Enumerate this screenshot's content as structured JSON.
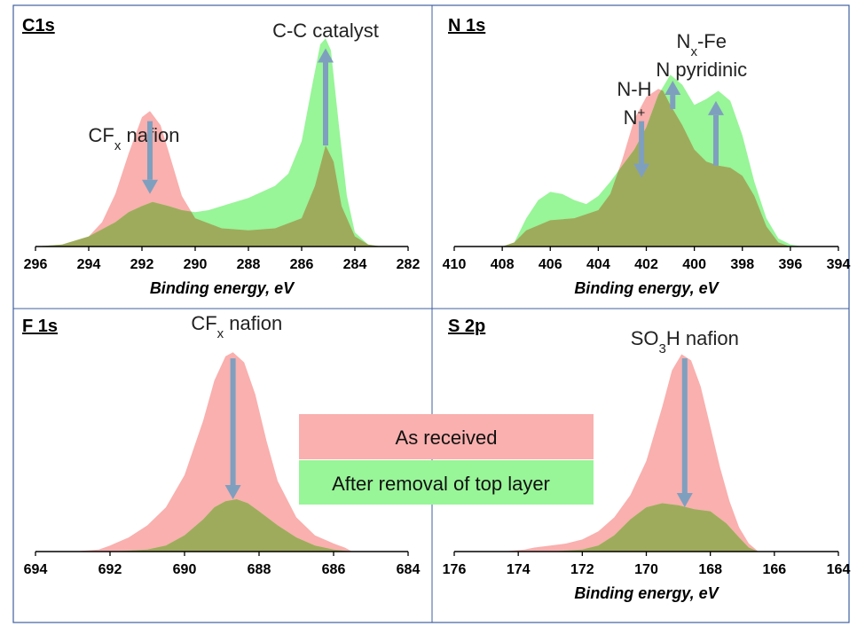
{
  "colors": {
    "as_received": "#f9b0ae",
    "after_removal": "#98f598",
    "overlap": "#9fab5c",
    "arrow": "#7f9fbf",
    "frame": "#3f5f9f"
  },
  "legend": {
    "as_received": "As received",
    "after_removal": "After removal of top layer"
  },
  "chart_data": [
    {
      "type": "area",
      "panel_title": "C1s",
      "xlabel": "Binding energy, eV",
      "xlim": [
        296,
        282
      ],
      "x_ticks": [
        296,
        294,
        292,
        290,
        288,
        286,
        284,
        282
      ],
      "annotations": [
        {
          "text": "CF",
          "sub": "x",
          "tail": " nafion",
          "x": 292.3
        },
        {
          "text": "C-C catalyst",
          "x": 285.1
        }
      ],
      "arrows": [
        {
          "x": 291.7,
          "from": 0.62,
          "to": 0.26
        },
        {
          "x": 285.1,
          "from": 0.5,
          "to": 0.98
        }
      ],
      "series": [
        {
          "name": "As received",
          "x": [
            296,
            295,
            294,
            293.5,
            293,
            292.5,
            292,
            291.7,
            291.3,
            291,
            290.5,
            290,
            289,
            288,
            287,
            286,
            285.5,
            285.1,
            284.8,
            284.5,
            284,
            283.5,
            283,
            282.5,
            282
          ],
          "y": [
            0,
            0.01,
            0.05,
            0.12,
            0.26,
            0.46,
            0.64,
            0.67,
            0.6,
            0.47,
            0.25,
            0.14,
            0.09,
            0.08,
            0.09,
            0.14,
            0.3,
            0.5,
            0.42,
            0.2,
            0.05,
            0.01,
            0,
            0,
            0
          ]
        },
        {
          "name": "After removal of top layer",
          "x": [
            296,
            295,
            294,
            293,
            292.5,
            292,
            291.6,
            291,
            290.5,
            290,
            289.5,
            289,
            288,
            287,
            286.5,
            286,
            285.6,
            285.3,
            285.1,
            284.9,
            284.6,
            284.3,
            284,
            283.5,
            283,
            282.5,
            282
          ],
          "y": [
            0,
            0.01,
            0.05,
            0.12,
            0.17,
            0.2,
            0.22,
            0.2,
            0.18,
            0.17,
            0.18,
            0.2,
            0.24,
            0.3,
            0.36,
            0.52,
            0.8,
            1.0,
            1.03,
            0.97,
            0.6,
            0.25,
            0.07,
            0.01,
            0,
            0,
            0
          ]
        }
      ]
    },
    {
      "type": "area",
      "panel_title": "N 1s",
      "xlabel": "Binding energy, eV",
      "xlim": [
        410,
        394
      ],
      "x_ticks": [
        410,
        408,
        406,
        404,
        402,
        400,
        398,
        396,
        394
      ],
      "annotations": [
        {
          "text": "N-H",
          "x": 402.5
        },
        {
          "text": "N",
          "sup": "+",
          "x": 402.5
        },
        {
          "text": "N",
          "sub": "x",
          "tail": "-Fe",
          "x": 399.7
        },
        {
          "text": "N pyridinic",
          "x": 399.7
        }
      ],
      "arrows": [
        {
          "x": 402.2,
          "from": 0.62,
          "to": 0.34
        },
        {
          "x": 400.9,
          "from": 0.68,
          "to": 0.82
        },
        {
          "x": 399.1,
          "from": 0.4,
          "to": 0.72
        }
      ],
      "series": [
        {
          "name": "As received",
          "x": [
            410,
            409,
            408,
            407.5,
            407,
            406,
            405,
            404,
            403.5,
            403,
            402.5,
            402,
            401.5,
            401.3,
            401,
            400.5,
            400,
            399.5,
            399,
            398.5,
            398,
            397.5,
            397,
            396.5,
            396,
            395,
            394
          ],
          "y": [
            0,
            0,
            0,
            0.02,
            0.08,
            0.13,
            0.14,
            0.18,
            0.26,
            0.43,
            0.63,
            0.74,
            0.78,
            0.77,
            0.7,
            0.6,
            0.48,
            0.42,
            0.4,
            0.39,
            0.35,
            0.25,
            0.1,
            0.02,
            0,
            0,
            0
          ]
        },
        {
          "name": "After removal of top layer",
          "x": [
            410,
            409,
            408,
            407.5,
            407,
            406.5,
            406,
            405.5,
            405,
            404.5,
            404,
            403.5,
            403,
            402.5,
            402,
            401.5,
            401,
            400.5,
            400,
            399.5,
            399,
            398.5,
            398,
            397.5,
            397,
            396.5,
            396,
            395.5,
            395,
            394
          ],
          "y": [
            0,
            0,
            0,
            0.02,
            0.14,
            0.23,
            0.27,
            0.26,
            0.23,
            0.21,
            0.25,
            0.32,
            0.4,
            0.48,
            0.59,
            0.75,
            0.85,
            0.8,
            0.7,
            0.73,
            0.77,
            0.72,
            0.55,
            0.32,
            0.14,
            0.04,
            0.01,
            0,
            0,
            0
          ]
        }
      ]
    },
    {
      "type": "area",
      "panel_title": "F 1s",
      "xlabel": "",
      "xlim": [
        694,
        684
      ],
      "x_ticks": [
        694,
        692,
        690,
        688,
        686,
        684
      ],
      "annotations": [
        {
          "text": "CF",
          "sub": "x",
          "tail": " nafion",
          "x": 688.6
        }
      ],
      "arrows": [
        {
          "x": 688.7,
          "from": 0.96,
          "to": 0.26
        }
      ],
      "series": [
        {
          "name": "As received",
          "x": [
            694,
            693,
            692.3,
            692,
            691.5,
            691,
            690.5,
            690,
            689.5,
            689.2,
            688.9,
            688.7,
            688.4,
            688.1,
            687.8,
            687.5,
            687,
            686.5,
            686,
            685.7,
            685.5,
            685,
            684
          ],
          "y": [
            0,
            0,
            0.01,
            0.03,
            0.07,
            0.13,
            0.22,
            0.38,
            0.65,
            0.85,
            0.97,
            0.99,
            0.94,
            0.78,
            0.55,
            0.35,
            0.17,
            0.08,
            0.04,
            0.02,
            0,
            0,
            0
          ]
        },
        {
          "name": "After removal of top layer",
          "x": [
            694,
            692,
            691,
            690.5,
            690,
            689.5,
            689.2,
            688.9,
            688.6,
            688.3,
            688,
            687.5,
            687,
            686.5,
            686,
            685.5,
            684
          ],
          "y": [
            0,
            0,
            0.01,
            0.03,
            0.08,
            0.16,
            0.22,
            0.25,
            0.26,
            0.24,
            0.2,
            0.13,
            0.07,
            0.03,
            0.01,
            0,
            0
          ]
        }
      ]
    },
    {
      "type": "area",
      "panel_title": "S 2p",
      "xlabel": "Binding energy, eV",
      "xlim": [
        176,
        164
      ],
      "x_ticks": [
        176,
        174,
        172,
        170,
        168,
        166,
        164
      ],
      "annotations": [
        {
          "text": "SO",
          "sub": "3",
          "tail": "H nafion",
          "x": 168.8
        }
      ],
      "arrows": [
        {
          "x": 168.8,
          "from": 0.96,
          "to": 0.22
        }
      ],
      "series": [
        {
          "name": "As received",
          "x": [
            176,
            174.5,
            173.8,
            173.5,
            173,
            172.5,
            172,
            171.5,
            171,
            170.5,
            170,
            169.5,
            169.2,
            168.9,
            168.6,
            168.3,
            168,
            167.7,
            167.4,
            167.1,
            166.8,
            166.5,
            166,
            164
          ],
          "y": [
            0,
            0,
            0.01,
            0.02,
            0.03,
            0.04,
            0.06,
            0.1,
            0.17,
            0.28,
            0.45,
            0.72,
            0.9,
            0.98,
            0.95,
            0.82,
            0.62,
            0.42,
            0.25,
            0.12,
            0.04,
            0,
            0,
            0
          ]
        },
        {
          "name": "After removal of top layer",
          "x": [
            176,
            173,
            172,
            171.5,
            171,
            170.5,
            170,
            169.5,
            169,
            168.5,
            168,
            167.5,
            167.1,
            166.8,
            166.5,
            164
          ],
          "y": [
            0,
            0,
            0.01,
            0.03,
            0.08,
            0.16,
            0.22,
            0.24,
            0.23,
            0.21,
            0.2,
            0.14,
            0.07,
            0.02,
            0,
            0
          ]
        }
      ]
    }
  ]
}
